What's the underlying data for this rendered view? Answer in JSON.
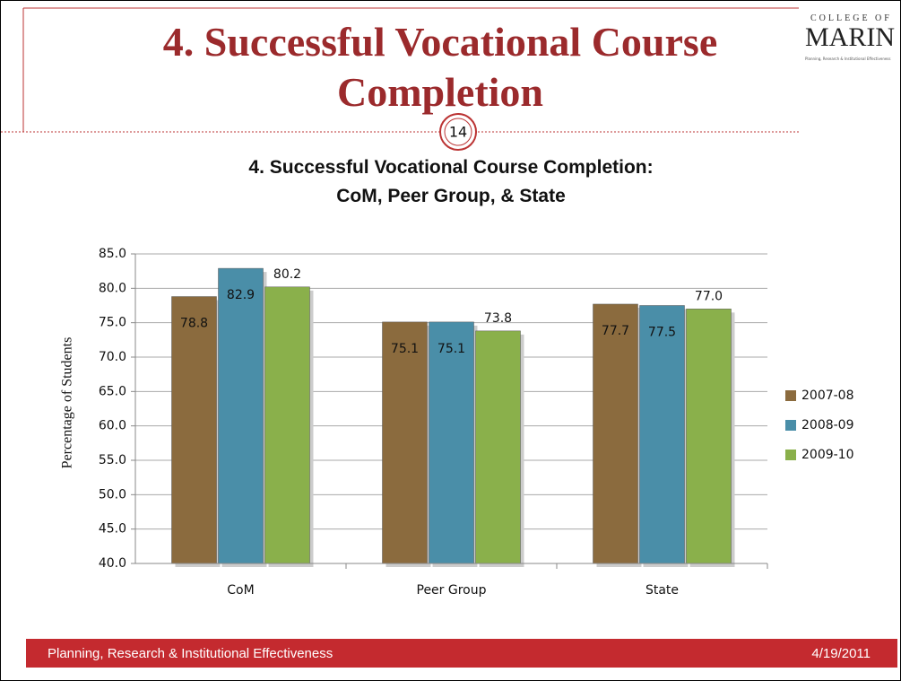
{
  "slide": {
    "title": "4. Successful Vocational Course Completion",
    "page_number": "14",
    "logo": {
      "top": "COLLEGE OF",
      "name": "MARIN",
      "subtitle": "Planning, Research & Institutional Effectiveness"
    },
    "footer": {
      "left": "Planning, Research & Institutional Effectiveness",
      "right": "4/19/2011"
    }
  },
  "chart_data": {
    "type": "bar",
    "title": "4. Successful Vocational Course Completion: CoM, Peer Group, & State",
    "y_label": "Percentage of Students",
    "categories": [
      "CoM",
      "Peer Group",
      "State"
    ],
    "series": [
      {
        "name": "2007-08",
        "color": "#8b6b3e",
        "values": [
          78.8,
          75.1,
          77.7
        ],
        "value_labels": [
          "78.8",
          "75.1",
          "77.7"
        ]
      },
      {
        "name": "2008-09",
        "color": "#4a8ea8",
        "values": [
          82.9,
          75.1,
          77.5
        ],
        "value_labels": [
          "82.9",
          "75.1",
          "77.5"
        ]
      },
      {
        "name": "2009-10",
        "color": "#8ab04b",
        "values": [
          80.2,
          73.8,
          77.0
        ],
        "value_labels": [
          "80.2",
          "73.8",
          "77.0"
        ]
      }
    ],
    "ylim": [
      40,
      85
    ],
    "yticks": [
      {
        "value": 40,
        "label": "40.0"
      },
      {
        "value": 45,
        "label": "45.0"
      },
      {
        "value": 50,
        "label": "50.0"
      },
      {
        "value": 55,
        "label": "55.0"
      },
      {
        "value": 60,
        "label": "60.0"
      },
      {
        "value": 65,
        "label": "65.0"
      },
      {
        "value": 70,
        "label": "70.0"
      },
      {
        "value": 75,
        "label": "75.0"
      },
      {
        "value": 80,
        "label": "80.0"
      },
      {
        "value": 85,
        "label": "85.0"
      }
    ],
    "grid": true,
    "legend": "right"
  }
}
